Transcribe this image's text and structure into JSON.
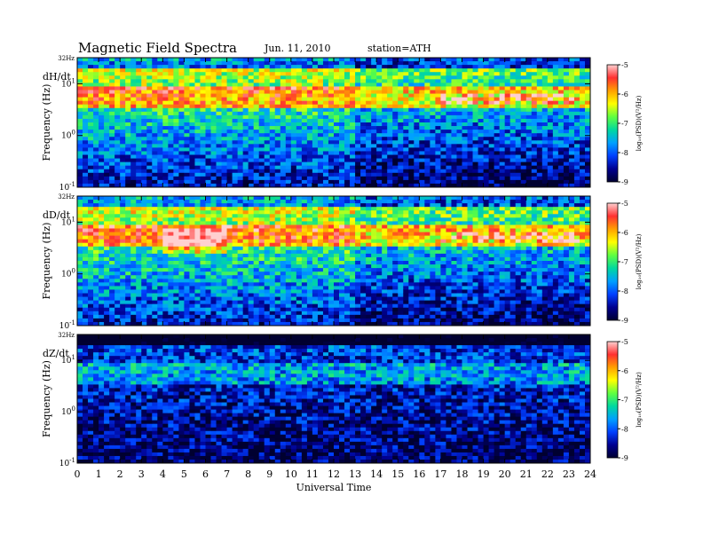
{
  "header": {
    "title": "Magnetic  Field  Spectra",
    "date": "Jun. 11, 2010",
    "station": "station=ATH"
  },
  "chart_data": {
    "type": "heatmap",
    "xlabel": "Universal Time",
    "xlim": [
      0,
      24
    ],
    "xticks": [
      "0",
      "1",
      "2",
      "3",
      "4",
      "5",
      "6",
      "7",
      "8",
      "9",
      "10",
      "11",
      "12",
      "13",
      "14",
      "15",
      "16",
      "17",
      "18",
      "19",
      "20",
      "21",
      "22",
      "23",
      "24"
    ],
    "ylabel": "Frequency  (Hz)",
    "ylim_hz": [
      0.1,
      32
    ],
    "y_scale": "log",
    "yticks": [
      {
        "value": 32,
        "label": "32Hz"
      },
      {
        "value": 10,
        "label": "10",
        "exp": "1"
      },
      {
        "value": 1,
        "label": "10",
        "exp": "0"
      },
      {
        "value": 0.1,
        "label": "10",
        "exp": "-1"
      }
    ],
    "colorbar": {
      "label": "log₁₀(PSD)(V²/Hz)",
      "range": [
        -9,
        -5
      ],
      "ticks": [
        "-5",
        "-6",
        "-7",
        "-8",
        "-9"
      ],
      "colors": [
        "#ffd0d0",
        "#ff3030",
        "#ffa000",
        "#ffff00",
        "#60ff40",
        "#00d8a0",
        "#00a0ff",
        "#0040ff",
        "#000090",
        "#000030"
      ]
    },
    "panels": [
      {
        "component": "dH/dt",
        "background": -7.6
      },
      {
        "component": "dD/dt",
        "background": -7.5
      },
      {
        "component": "dZ/dt",
        "background": -8.0
      }
    ]
  }
}
